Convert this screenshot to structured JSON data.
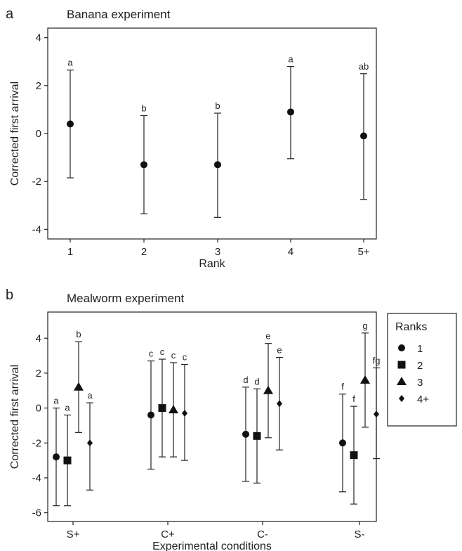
{
  "chart_data": [
    {
      "type": "scatter",
      "panel_label": "a",
      "title": "Banana experiment",
      "xlabel": "Rank",
      "ylabel": "Corrected first arrival",
      "categories": [
        "1",
        "2",
        "3",
        "4",
        "5+"
      ],
      "ylim": [
        -4.4,
        4.4
      ],
      "yticks": [
        -4,
        -2,
        0,
        2,
        4
      ],
      "grid": false,
      "series": [
        {
          "marker": "circle",
          "values": [
            0.4,
            -1.3,
            -1.3,
            0.9,
            -0.1
          ],
          "lower": [
            -1.85,
            -3.35,
            -3.5,
            -1.05,
            -2.75
          ],
          "upper": [
            2.65,
            0.75,
            0.85,
            2.8,
            2.5
          ],
          "labels": [
            "a",
            "b",
            "b",
            "a",
            "ab"
          ]
        }
      ]
    },
    {
      "type": "scatter",
      "panel_label": "b",
      "title": "Mealworm experiment",
      "xlabel": "Experimental conditions",
      "ylabel": "Corrected first arrival",
      "categories": [
        "S+",
        "C+",
        "C-",
        "S-"
      ],
      "ylim": [
        -6.5,
        5.5
      ],
      "yticks": [
        -6,
        -4,
        -2,
        0,
        2,
        4
      ],
      "grid": false,
      "legend": {
        "title": "Ranks",
        "position": "outside-right"
      },
      "series": [
        {
          "name": "1",
          "marker": "circle",
          "values": [
            -2.8,
            -0.4,
            -1.5,
            -2.0
          ],
          "lower": [
            -5.6,
            -3.5,
            -4.2,
            -4.8
          ],
          "upper": [
            0.0,
            2.7,
            1.2,
            0.8
          ],
          "labels": [
            "a",
            "c",
            "d",
            "f"
          ]
        },
        {
          "name": "2",
          "marker": "square",
          "values": [
            -3.0,
            0.0,
            -1.6,
            -2.7
          ],
          "lower": [
            -5.6,
            -2.8,
            -4.3,
            -5.5
          ],
          "upper": [
            -0.4,
            2.8,
            1.1,
            0.1
          ],
          "labels": [
            "a",
            "c",
            "d",
            "f"
          ]
        },
        {
          "name": "3",
          "marker": "triangle",
          "values": [
            1.2,
            -0.1,
            1.0,
            1.6
          ],
          "lower": [
            -1.4,
            -2.8,
            -1.7,
            -1.1
          ],
          "upper": [
            3.8,
            2.6,
            3.7,
            4.3
          ],
          "labels": [
            "b",
            "c",
            "e",
            "g"
          ]
        },
        {
          "name": "4+",
          "marker": "diamond",
          "values": [
            -2.0,
            -0.3,
            0.25,
            -0.35
          ],
          "lower": [
            -4.7,
            -3.0,
            -2.4,
            -2.9
          ],
          "upper": [
            0.3,
            2.5,
            2.9,
            2.3
          ],
          "labels": [
            "a",
            "c",
            "e",
            "fg"
          ]
        }
      ]
    }
  ]
}
